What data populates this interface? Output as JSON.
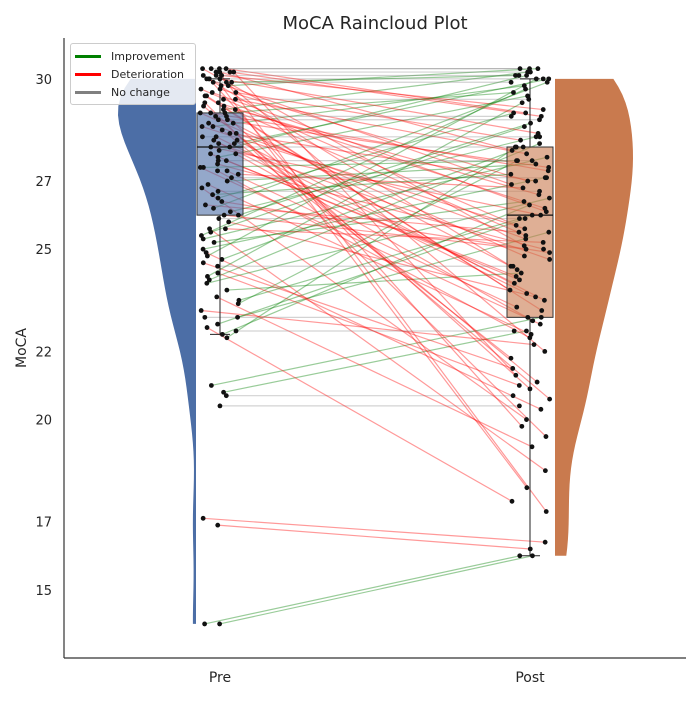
{
  "chart_data": {
    "type": "raincloud",
    "title": "MoCA Raincloud Plot",
    "xlabel": "",
    "ylabel": "MoCA",
    "categories": [
      "Pre",
      "Post"
    ],
    "yticks": [
      15,
      17,
      20,
      22,
      25,
      27,
      30
    ],
    "ylim": [
      13.0,
      31.2
    ],
    "grid": false,
    "colors": {
      "pre": "#4c6ea6",
      "post": "#c97a4e",
      "improvement": "#008000",
      "deterioration": "#ff0000",
      "no_change": "#808080",
      "point": "#111111"
    },
    "legend": {
      "placement": "top-left",
      "entries": [
        {
          "label": "Improvement",
          "key": "improvement"
        },
        {
          "label": "Deterioration",
          "key": "deterioration"
        },
        {
          "label": "No change",
          "key": "no_change"
        }
      ]
    },
    "boxplot": {
      "Pre": {
        "q1": 26.0,
        "median": 28.0,
        "q3": 29.0,
        "whisker_low": 22.5,
        "whisker_high": 30.0
      },
      "Post": {
        "q1": 23.0,
        "median": 26.0,
        "q3": 28.0,
        "whisker_low": 16.0,
        "whisker_high": 30.0
      }
    },
    "density_range": {
      "Pre": [
        14.0,
        30.0
      ],
      "Post": [
        16.0,
        30.0
      ]
    },
    "pairs": [
      [
        14.0,
        16.0
      ],
      [
        14.0,
        16.0
      ],
      [
        16.9,
        16.2
      ],
      [
        17.1,
        16.4
      ],
      [
        20.8,
        22.6
      ],
      [
        21.0,
        23.0
      ],
      [
        20.7,
        20.7
      ],
      [
        20.4,
        20.4
      ],
      [
        22.4,
        28.0
      ],
      [
        22.5,
        26.3
      ],
      [
        22.7,
        17.6
      ],
      [
        23.0,
        25.5
      ],
      [
        23.0,
        23.0
      ],
      [
        23.4,
        27.6
      ],
      [
        23.6,
        19.2
      ],
      [
        23.8,
        24.3
      ],
      [
        24.0,
        26.5
      ],
      [
        24.3,
        21.0
      ],
      [
        24.7,
        28.0
      ],
      [
        24.9,
        20.3
      ],
      [
        25.2,
        26.4
      ],
      [
        25.3,
        27.7
      ],
      [
        25.6,
        18.5
      ],
      [
        25.9,
        25.9
      ],
      [
        26.0,
        25.0
      ],
      [
        26.1,
        28.3
      ],
      [
        26.3,
        25.5
      ],
      [
        26.5,
        29.0
      ],
      [
        26.8,
        20.0
      ],
      [
        27.0,
        27.5
      ],
      [
        27.2,
        26.8
      ],
      [
        27.3,
        22.4
      ],
      [
        27.5,
        25.0
      ],
      [
        27.7,
        29.5
      ],
      [
        27.8,
        24.1
      ],
      [
        28.0,
        28.0
      ],
      [
        28.0,
        26.0
      ],
      [
        28.1,
        30.0
      ],
      [
        28.2,
        23.5
      ],
      [
        28.4,
        27.0
      ],
      [
        28.5,
        21.8
      ],
      [
        28.6,
        29.8
      ],
      [
        28.7,
        25.3
      ],
      [
        28.8,
        28.8
      ],
      [
        29.0,
        27.3
      ],
      [
        29.0,
        24.8
      ],
      [
        29.1,
        30.2
      ],
      [
        29.2,
        20.6
      ],
      [
        29.3,
        26.2
      ],
      [
        29.4,
        29.4
      ],
      [
        29.5,
        23.2
      ],
      [
        29.6,
        28.2
      ],
      [
        29.7,
        25.7
      ],
      [
        29.8,
        30.3
      ],
      [
        29.9,
        22.0
      ],
      [
        30.0,
        30.0
      ],
      [
        30.0,
        26.9
      ],
      [
        30.1,
        24.5
      ],
      [
        30.1,
        29.1
      ],
      [
        30.2,
        21.3
      ],
      [
        30.2,
        27.9
      ],
      [
        30.3,
        30.3
      ],
      [
        30.3,
        25.1
      ],
      [
        30.0,
        19.8
      ],
      [
        29.9,
        30.1
      ],
      [
        29.5,
        23.8
      ],
      [
        29.0,
        29.6
      ],
      [
        28.3,
        24.0
      ],
      [
        27.9,
        30.1
      ],
      [
        27.4,
        22.8
      ],
      [
        26.7,
        26.7
      ],
      [
        26.2,
        29.9
      ],
      [
        25.8,
        23.6
      ],
      [
        25.5,
        28.6
      ],
      [
        25.0,
        27.1
      ],
      [
        24.6,
        21.5
      ],
      [
        24.2,
        29.3
      ],
      [
        23.2,
        22.2
      ],
      [
        22.8,
        25.9
      ],
      [
        30.1,
        17.3
      ],
      [
        29.8,
        18.0
      ],
      [
        29.3,
        19.5
      ],
      [
        28.9,
        20.9
      ],
      [
        28.4,
        21.1
      ],
      [
        28.8,
        27.4
      ],
      [
        29.4,
        27.8
      ],
      [
        30.0,
        28.4
      ],
      [
        27.1,
        27.1
      ],
      [
        26.4,
        24.9
      ],
      [
        25.6,
        25.2
      ],
      [
        24.5,
        24.5
      ],
      [
        23.5,
        26.0
      ],
      [
        30.3,
        29.0
      ],
      [
        30.2,
        28.9
      ],
      [
        29.7,
        27.0
      ],
      [
        29.1,
        26.6
      ],
      [
        28.6,
        25.6
      ],
      [
        28.1,
        24.7
      ],
      [
        27.6,
        24.2
      ],
      [
        27.3,
        23.3
      ],
      [
        26.9,
        22.5
      ],
      [
        26.6,
        27.2
      ],
      [
        26.0,
        28.7
      ],
      [
        25.4,
        29.7
      ],
      [
        24.8,
        30.0
      ],
      [
        24.1,
        28.1
      ],
      [
        29.6,
        26.1
      ],
      [
        29.2,
        25.4
      ],
      [
        28.7,
        24.4
      ],
      [
        28.2,
        23.7
      ],
      [
        27.8,
        22.9
      ],
      [
        27.4,
        27.6
      ],
      [
        30.3,
        30.3
      ],
      [
        30.2,
        30.2
      ],
      [
        29.9,
        29.9
      ],
      [
        28.3,
        28.3
      ],
      [
        27.6,
        27.6
      ],
      [
        22.6,
        22.6
      ],
      [
        30.1,
        30.1
      ],
      [
        28.9,
        28.9
      ]
    ]
  }
}
